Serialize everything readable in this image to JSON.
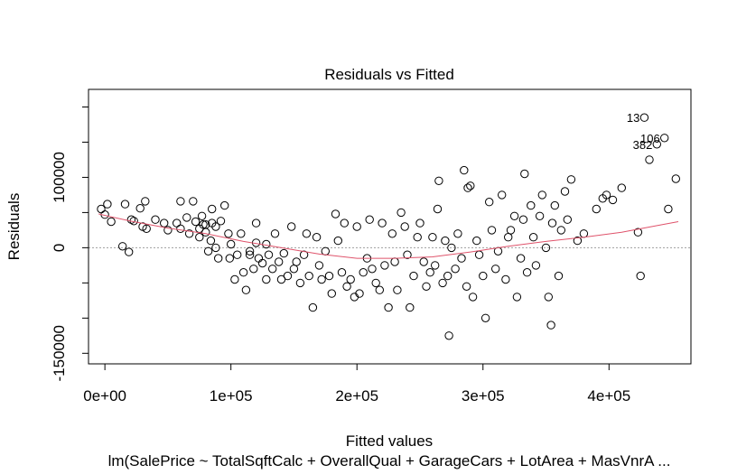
{
  "chart_data": {
    "type": "scatter",
    "title": "Residuals vs Fitted",
    "xlabel": "Fitted values",
    "ylabel": "Residuals",
    "subtitle": "lm(SalePrice ~ TotalSqftCalc + OverallQual + GarageCars + LotArea + MasVnrA ...",
    "xlim": [
      -13000,
      465000
    ],
    "ylim": [
      -165000,
      225000
    ],
    "x_ticks": [
      0,
      100000,
      200000,
      300000,
      400000
    ],
    "x_tick_labels": [
      "0e+00",
      "1e+05",
      "2e+05",
      "3e+05",
      "4e+05"
    ],
    "y_ticks": [
      -150000,
      -100000,
      -50000,
      0,
      50000,
      100000,
      150000,
      200000
    ],
    "y_tick_labels": [
      "-150000",
      "",
      "",
      "0",
      "",
      "100000",
      "",
      ""
    ],
    "reference_line_y": 0,
    "colors": {
      "points": "#000000",
      "smooth": "#df536b",
      "refline": "#9e9e9e"
    },
    "outlier_labels": [
      {
        "label": "13",
        "x": 428000,
        "y": 185000
      },
      {
        "label": "106",
        "x": 444000,
        "y": 156000
      },
      {
        "label": "382",
        "x": 438000,
        "y": 147000
      }
    ],
    "smooth": {
      "x": [
        -5000,
        20000,
        50000,
        80000,
        110000,
        140000,
        170000,
        200000,
        230000,
        260000,
        290000,
        320000,
        350000,
        380000,
        410000,
        440000,
        455000
      ],
      "y": [
        48000,
        38000,
        28000,
        20000,
        9000,
        0,
        -9000,
        -15000,
        -15000,
        -13000,
        -6000,
        2000,
        9000,
        15000,
        22000,
        32000,
        37000
      ]
    },
    "points": [
      [
        -3000,
        55000
      ],
      [
        0,
        47000
      ],
      [
        2000,
        62000
      ],
      [
        5000,
        37000
      ],
      [
        14000,
        2000
      ],
      [
        16000,
        62000
      ],
      [
        19000,
        -6000
      ],
      [
        21000,
        40000
      ],
      [
        23000,
        38000
      ],
      [
        28000,
        56000
      ],
      [
        30000,
        30000
      ],
      [
        32000,
        66000
      ],
      [
        33000,
        27000
      ],
      [
        40000,
        40000
      ],
      [
        47000,
        35000
      ],
      [
        50000,
        25000
      ],
      [
        57000,
        35000
      ],
      [
        60000,
        27000
      ],
      [
        60000,
        66000
      ],
      [
        65000,
        43000
      ],
      [
        67000,
        20000
      ],
      [
        70000,
        66000
      ],
      [
        72000,
        37000
      ],
      [
        75000,
        27000
      ],
      [
        75000,
        15000
      ],
      [
        77000,
        45000
      ],
      [
        78000,
        33000
      ],
      [
        80000,
        33000
      ],
      [
        80000,
        22000
      ],
      [
        82000,
        -5000
      ],
      [
        84000,
        10000
      ],
      [
        85000,
        35000
      ],
      [
        85000,
        55000
      ],
      [
        88000,
        0
      ],
      [
        88000,
        30000
      ],
      [
        90000,
        -15000
      ],
      [
        92000,
        38000
      ],
      [
        95000,
        60000
      ],
      [
        98000,
        20000
      ],
      [
        99000,
        -15000
      ],
      [
        100000,
        5000
      ],
      [
        103000,
        -45000
      ],
      [
        105000,
        -10000
      ],
      [
        108000,
        20000
      ],
      [
        110000,
        -35000
      ],
      [
        112000,
        -60000
      ],
      [
        115000,
        -10000
      ],
      [
        115000,
        -5000
      ],
      [
        118000,
        -30000
      ],
      [
        120000,
        35000
      ],
      [
        120000,
        7000
      ],
      [
        122000,
        -15000
      ],
      [
        125000,
        -22000
      ],
      [
        128000,
        -45000
      ],
      [
        128000,
        5000
      ],
      [
        130000,
        -10000
      ],
      [
        133000,
        -30000
      ],
      [
        135000,
        20000
      ],
      [
        138000,
        -20000
      ],
      [
        140000,
        -45000
      ],
      [
        142000,
        -8000
      ],
      [
        145000,
        -40000
      ],
      [
        148000,
        30000
      ],
      [
        150000,
        -30000
      ],
      [
        152000,
        -20000
      ],
      [
        155000,
        -50000
      ],
      [
        158000,
        -10000
      ],
      [
        160000,
        20000
      ],
      [
        162000,
        -40000
      ],
      [
        165000,
        -85000
      ],
      [
        168000,
        15000
      ],
      [
        170000,
        -25000
      ],
      [
        172000,
        -45000
      ],
      [
        175000,
        -5000
      ],
      [
        178000,
        -40000
      ],
      [
        180000,
        -65000
      ],
      [
        183000,
        48000
      ],
      [
        185000,
        10000
      ],
      [
        188000,
        -35000
      ],
      [
        190000,
        35000
      ],
      [
        192000,
        -55000
      ],
      [
        195000,
        -45000
      ],
      [
        198000,
        -70000
      ],
      [
        200000,
        30000
      ],
      [
        202000,
        -65000
      ],
      [
        205000,
        -35000
      ],
      [
        208000,
        -15000
      ],
      [
        210000,
        40000
      ],
      [
        212000,
        -30000
      ],
      [
        215000,
        -50000
      ],
      [
        218000,
        -60000
      ],
      [
        220000,
        35000
      ],
      [
        222000,
        -25000
      ],
      [
        225000,
        -85000
      ],
      [
        228000,
        20000
      ],
      [
        230000,
        -20000
      ],
      [
        232000,
        -60000
      ],
      [
        235000,
        50000
      ],
      [
        238000,
        30000
      ],
      [
        240000,
        -10000
      ],
      [
        242000,
        -85000
      ],
      [
        245000,
        -40000
      ],
      [
        248000,
        15000
      ],
      [
        250000,
        35000
      ],
      [
        253000,
        -20000
      ],
      [
        255000,
        -55000
      ],
      [
        258000,
        -35000
      ],
      [
        260000,
        15000
      ],
      [
        262000,
        -25000
      ],
      [
        264000,
        55000
      ],
      [
        265000,
        95000
      ],
      [
        268000,
        -50000
      ],
      [
        270000,
        10000
      ],
      [
        272000,
        -40000
      ],
      [
        273000,
        -125000
      ],
      [
        275000,
        0
      ],
      [
        278000,
        -30000
      ],
      [
        280000,
        20000
      ],
      [
        283000,
        -15000
      ],
      [
        285000,
        110000
      ],
      [
        287000,
        -55000
      ],
      [
        288000,
        85000
      ],
      [
        290000,
        88000
      ],
      [
        292000,
        -70000
      ],
      [
        295000,
        10000
      ],
      [
        297000,
        -10000
      ],
      [
        300000,
        -40000
      ],
      [
        302000,
        -100000
      ],
      [
        305000,
        65000
      ],
      [
        307000,
        25000
      ],
      [
        310000,
        -30000
      ],
      [
        312000,
        -5000
      ],
      [
        315000,
        75000
      ],
      [
        318000,
        -45000
      ],
      [
        320000,
        15000
      ],
      [
        322000,
        25000
      ],
      [
        325000,
        45000
      ],
      [
        327000,
        -70000
      ],
      [
        330000,
        -15000
      ],
      [
        332000,
        40000
      ],
      [
        333000,
        105000
      ],
      [
        335000,
        -35000
      ],
      [
        338000,
        60000
      ],
      [
        340000,
        15000
      ],
      [
        342000,
        -25000
      ],
      [
        345000,
        45000
      ],
      [
        347000,
        75000
      ],
      [
        350000,
        0
      ],
      [
        352000,
        -70000
      ],
      [
        354000,
        -110000
      ],
      [
        355000,
        35000
      ],
      [
        357000,
        60000
      ],
      [
        360000,
        -40000
      ],
      [
        362000,
        25000
      ],
      [
        365000,
        80000
      ],
      [
        367000,
        40000
      ],
      [
        370000,
        97000
      ],
      [
        375000,
        10000
      ],
      [
        380000,
        20000
      ],
      [
        390000,
        55000
      ],
      [
        395000,
        70000
      ],
      [
        398000,
        75000
      ],
      [
        403000,
        68000
      ],
      [
        410000,
        85000
      ],
      [
        423000,
        22000
      ],
      [
        425000,
        -40000
      ],
      [
        428000,
        185000
      ],
      [
        432000,
        125000
      ],
      [
        438000,
        147000
      ],
      [
        444000,
        156000
      ],
      [
        447000,
        55000
      ],
      [
        453000,
        98000
      ]
    ]
  }
}
